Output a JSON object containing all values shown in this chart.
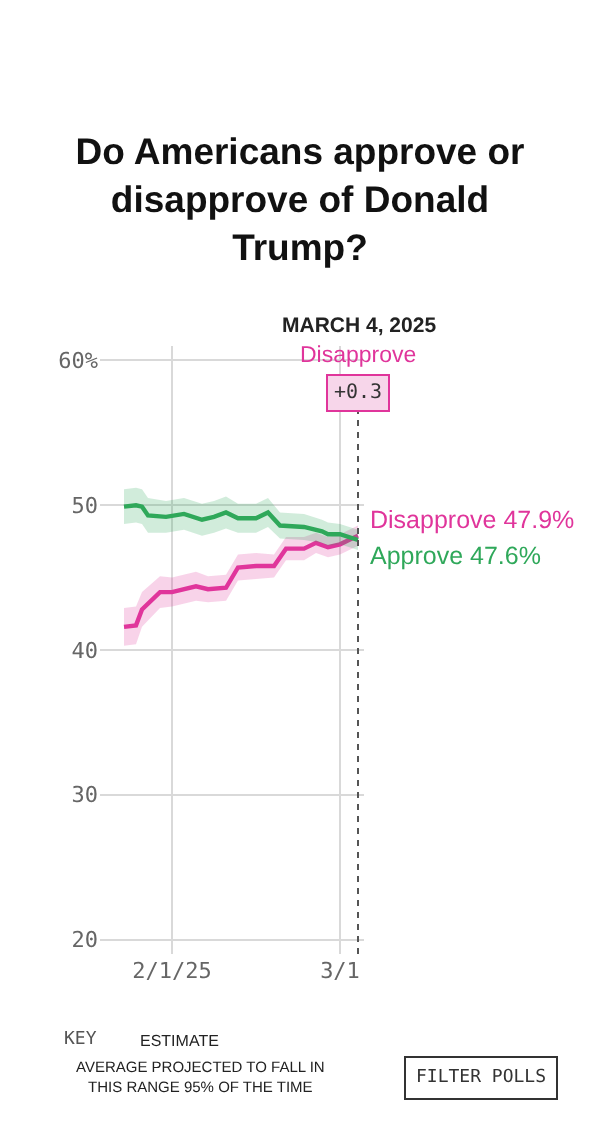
{
  "chart_data": {
    "type": "line",
    "title": "Do Americans approve or disapprove of Donald Trump?",
    "xlim": [
      "2025-01-20",
      "2025-03-05"
    ],
    "ylim": [
      19,
      61
    ],
    "xticks": [
      {
        "value": "2025-02-01",
        "label": "2/1/25"
      },
      {
        "value": "2025-03-01",
        "label": "3/1"
      }
    ],
    "yticks": [
      20,
      30,
      40,
      50,
      {
        "value": 60,
        "label": "60%"
      }
    ],
    "grid": true,
    "legend": false,
    "marker": "none",
    "line_style": "solid",
    "series": [
      {
        "name": "Disapprove",
        "color": "#e0359b",
        "x": [
          "2025-01-24",
          "2025-01-26",
          "2025-01-27",
          "2025-01-30",
          "2025-02-01",
          "2025-02-05",
          "2025-02-07",
          "2025-02-10",
          "2025-02-12",
          "2025-02-15",
          "2025-02-18",
          "2025-02-20",
          "2025-02-23",
          "2025-02-25",
          "2025-02-27",
          "2025-03-01",
          "2025-03-04"
        ],
        "values": [
          41.6,
          41.7,
          42.8,
          44.0,
          44.0,
          44.4,
          44.2,
          44.3,
          45.7,
          45.8,
          45.8,
          47.0,
          47.0,
          47.4,
          47.1,
          47.3,
          47.9
        ],
        "lower": [
          40.3,
          40.4,
          41.6,
          42.9,
          43.0,
          43.4,
          43.3,
          43.4,
          44.8,
          44.9,
          45.0,
          46.2,
          46.2,
          46.7,
          46.4,
          46.6,
          47.2
        ],
        "upper": [
          42.9,
          43.0,
          44.0,
          45.1,
          45.0,
          45.4,
          45.1,
          45.2,
          46.6,
          46.7,
          46.6,
          47.8,
          47.8,
          48.1,
          47.8,
          48.0,
          48.6
        ],
        "value_labels": [
          null,
          null,
          null,
          null,
          null,
          null,
          null,
          null,
          null,
          null,
          null,
          null,
          null,
          null,
          null,
          null,
          "47.9%"
        ]
      },
      {
        "name": "Approve",
        "color": "#2fa85a",
        "x": [
          "2025-01-24",
          "2025-01-26",
          "2025-01-27",
          "2025-01-28",
          "2025-01-31",
          "2025-02-03",
          "2025-02-06",
          "2025-02-08",
          "2025-02-10",
          "2025-02-12",
          "2025-02-15",
          "2025-02-17",
          "2025-02-19",
          "2025-02-23",
          "2025-02-26",
          "2025-02-27",
          "2025-03-01",
          "2025-03-04"
        ],
        "values": [
          49.9,
          50.0,
          49.9,
          49.3,
          49.2,
          49.4,
          49.0,
          49.2,
          49.5,
          49.1,
          49.1,
          49.5,
          48.6,
          48.5,
          48.2,
          48.0,
          48.0,
          47.6
        ],
        "lower": [
          48.7,
          48.8,
          48.7,
          48.1,
          48.1,
          48.3,
          47.9,
          48.1,
          48.4,
          48.1,
          48.1,
          48.5,
          47.7,
          47.6,
          47.4,
          47.2,
          47.3,
          46.9
        ],
        "upper": [
          51.1,
          51.2,
          51.1,
          50.5,
          50.3,
          50.5,
          50.1,
          50.3,
          50.6,
          50.1,
          50.1,
          50.5,
          49.5,
          49.4,
          49.0,
          48.8,
          48.7,
          48.3
        ],
        "value_labels": [
          null,
          null,
          null,
          null,
          null,
          null,
          null,
          null,
          null,
          null,
          null,
          null,
          null,
          null,
          null,
          null,
          null,
          "47.6%"
        ]
      }
    ],
    "ref_lines": [
      {
        "axis": "x",
        "value": "2025-03-04",
        "label": "MARCH 4, 2025",
        "color": "#555555",
        "line_style": "dotted"
      }
    ],
    "annotations": [
      "Disapprove",
      "+0.3",
      "KEY",
      "ESTIMATE",
      "AVERAGE PROJECTED TO FALL IN THIS RANGE 95% OF THE TIME",
      "FILTER POLLS"
    ]
  }
}
